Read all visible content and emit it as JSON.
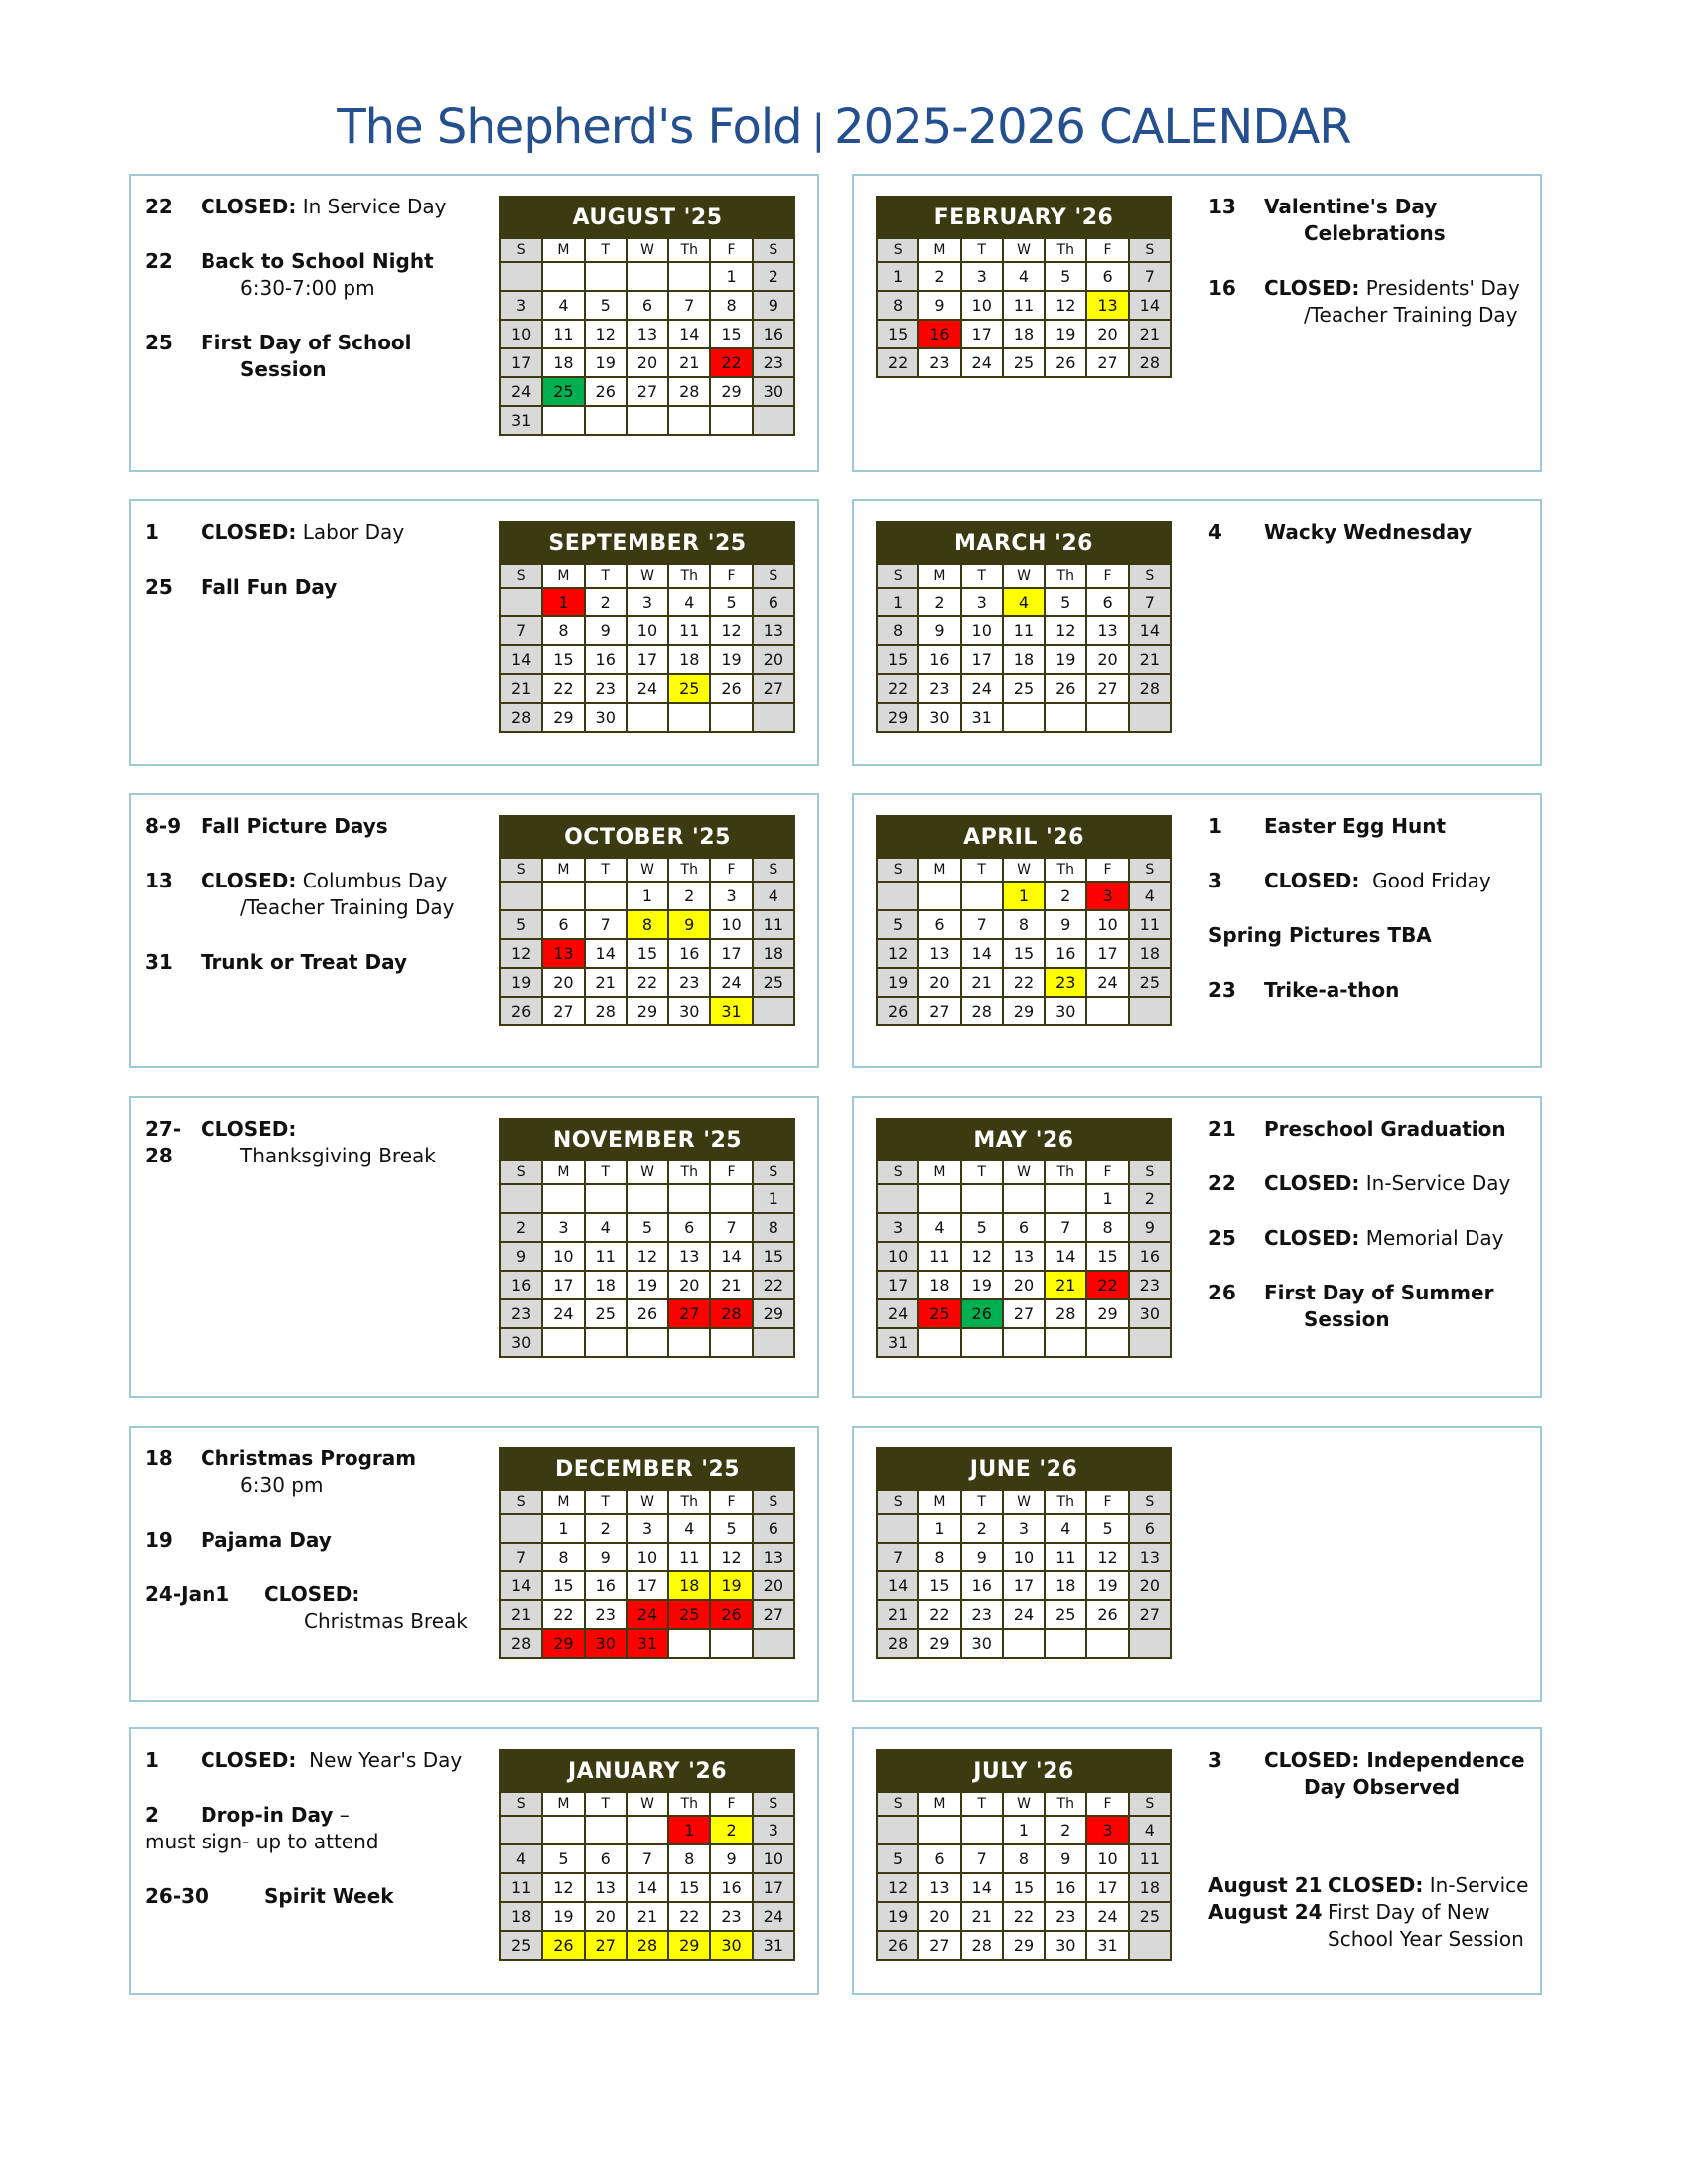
{
  "title": {
    "name": "The Shepherd's Fold",
    "separator": "|",
    "subtitle": "2025-2026 CALENDAR"
  },
  "colors": {
    "header": "#3b3a10",
    "closed": "#ff0000",
    "event": "#ffff00",
    "start": "#00b050",
    "weekend": "#d9d9d9",
    "border": "#9ccad6",
    "title": "#24508f"
  },
  "weekdays": [
    "S",
    "M",
    "T",
    "W",
    "Th",
    "F",
    "S"
  ],
  "months": [
    {
      "label": "AUGUST '25",
      "start": 5,
      "days": 31,
      "highlights": {
        "22": "red",
        "25": "green"
      },
      "events": [
        {
          "date": "22",
          "bold": "CLOSED:",
          "text": " In Service Day"
        },
        {
          "date": "22",
          "bold": "Back to School Night",
          "sub": "6:30-7:00 pm"
        },
        {
          "date": "25",
          "bold": "First Day of School",
          "sub": "Session",
          "sub_bold": true
        }
      ]
    },
    {
      "label": "FEBRUARY '26",
      "start": 0,
      "days": 28,
      "highlights": {
        "13": "yellow",
        "16": "red"
      },
      "events": [
        {
          "date": "13",
          "bold": "Valentine's Day",
          "sub": "Celebrations",
          "sub_bold": true
        },
        {
          "date": "16",
          "bold": "CLOSED:",
          "text": " Presidents' Day",
          "sub": "/Teacher Training Day"
        }
      ]
    },
    {
      "label": "SEPTEMBER '25",
      "start": 1,
      "days": 30,
      "highlights": {
        "1": "red",
        "25": "yellow"
      },
      "events": [
        {
          "date": "1",
          "bold": "CLOSED:",
          "text": " Labor Day"
        },
        {
          "date": "25",
          "bold": "Fall Fun Day"
        }
      ]
    },
    {
      "label": "MARCH '26",
      "start": 0,
      "days": 31,
      "highlights": {
        "4": "yellow"
      },
      "events": [
        {
          "date": "4",
          "bold": "Wacky Wednesday"
        }
      ]
    },
    {
      "label": "OCTOBER '25",
      "start": 3,
      "days": 31,
      "highlights": {
        "8": "yellow",
        "9": "yellow",
        "13": "red",
        "31": "yellow"
      },
      "events": [
        {
          "date": "8-9",
          "bold": "Fall Picture Days"
        },
        {
          "date": "13",
          "bold": "CLOSED:",
          "text": " Columbus Day",
          "sub": "/Teacher Training Day"
        },
        {
          "date": "31",
          "bold": "Trunk or Treat Day"
        }
      ]
    },
    {
      "label": "APRIL '26",
      "start": 3,
      "days": 30,
      "highlights": {
        "1": "yellow",
        "3": "red",
        "23": "yellow"
      },
      "events": [
        {
          "date": "1",
          "bold": "Easter Egg Hunt"
        },
        {
          "date": "3",
          "bold": "CLOSED:",
          "text": "  Good Friday"
        },
        {
          "date": "",
          "bold": "Spring Pictures TBA",
          "flush": true
        },
        {
          "date": "23",
          "bold": "Trike-a-thon"
        }
      ]
    },
    {
      "label": "NOVEMBER '25",
      "start": 6,
      "days": 30,
      "highlights": {
        "27": "red",
        "28": "red"
      },
      "events": [
        {
          "date": "27-28",
          "bold": "CLOSED:",
          "sub": "Thanksgiving Break"
        }
      ]
    },
    {
      "label": "MAY '26",
      "start": 5,
      "days": 31,
      "highlights": {
        "21": "yellow",
        "22": "red",
        "25": "red",
        "26": "green"
      },
      "events": [
        {
          "date": "21",
          "bold": "Preschool Graduation"
        },
        {
          "date": "22",
          "bold": "CLOSED:",
          "text": " In-Service Day"
        },
        {
          "date": "25",
          "bold": "CLOSED:",
          "text": " Memorial Day"
        },
        {
          "date": "26",
          "bold": "First Day of Summer",
          "sub": "Session",
          "sub_bold": true
        }
      ]
    },
    {
      "label": "DECEMBER '25",
      "start": 1,
      "days": 31,
      "highlights": {
        "18": "yellow",
        "19": "yellow",
        "24": "red",
        "25": "red",
        "26": "red",
        "29": "red",
        "30": "red",
        "31": "red"
      },
      "events": [
        {
          "date": "18",
          "bold": "Christmas Program",
          "sub": "6:30 pm"
        },
        {
          "date": "19",
          "bold": "Pajama Day"
        },
        {
          "date": "24-Jan1",
          "bold": "CLOSED:",
          "sub": "Christmas Break",
          "wide": true
        }
      ]
    },
    {
      "label": "JUNE '26",
      "start": 1,
      "days": 30,
      "highlights": {},
      "events": []
    },
    {
      "label": "JANUARY '26",
      "start": 4,
      "days": 31,
      "highlights": {
        "1": "red",
        "2": "yellow",
        "26": "yellow",
        "27": "yellow",
        "28": "yellow",
        "29": "yellow",
        "30": "yellow"
      },
      "events": [
        {
          "date": "1",
          "bold": "CLOSED:",
          "text": "  New Year's Day"
        },
        {
          "date": "2",
          "bold": "Drop-in Day",
          "text": " –",
          "sub": "must sign- up to attend",
          "sub_flush": true
        },
        {
          "date": "26-30",
          "bold": "Spirit Week",
          "wide": true
        }
      ]
    },
    {
      "label": "JULY '26",
      "start": 3,
      "days": 31,
      "highlights": {
        "3": "red"
      },
      "events": [
        {
          "date": "3",
          "bold": "CLOSED: Independence",
          "sub": "Day Observed",
          "sub_bold": true
        },
        {
          "date": "August 21",
          "bold": "CLOSED:",
          "text": " In-Service",
          "wide": true,
          "tight": true,
          "gap": true
        },
        {
          "date": "August 24",
          "text": "First Day of New",
          "sub": "School Year Session",
          "wide": true,
          "tight": true,
          "sub_plain": true
        }
      ]
    }
  ]
}
